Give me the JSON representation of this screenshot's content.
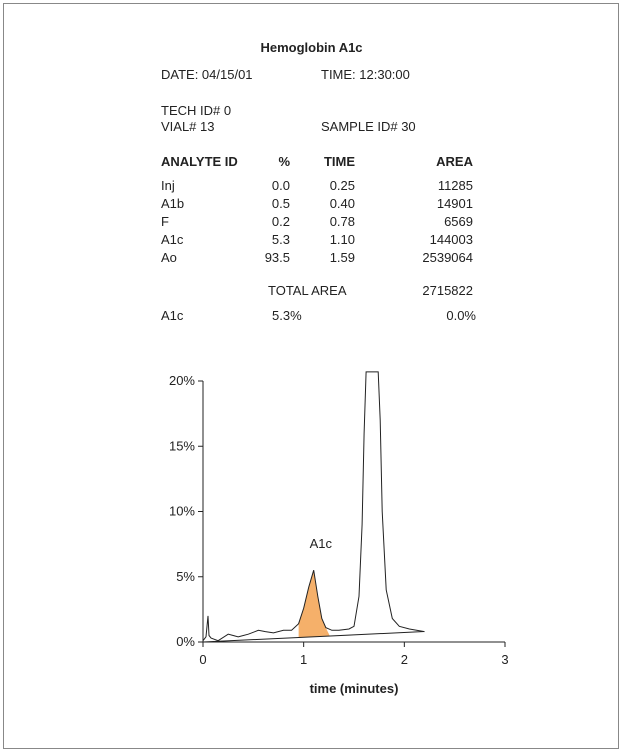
{
  "report": {
    "title": "Hemoglobin A1c",
    "date": "DATE: 04/15/01",
    "time": "TIME: 12:30:00",
    "tech_id": "TECH ID#  0",
    "vial": "VIAL#  13",
    "sample_id": "SAMPLE ID#  30"
  },
  "table": {
    "headers": [
      "ANALYTE ID",
      "%",
      "TIME",
      "AREA"
    ],
    "rows": [
      [
        "Inj",
        "0.0",
        "0.25",
        "11285"
      ],
      [
        "A1b",
        "0.5",
        "0.40",
        "14901"
      ],
      [
        "F",
        "0.2",
        "0.78",
        "6569"
      ],
      [
        "A1c",
        "5.3",
        "1.10",
        "144003"
      ],
      [
        "Ao",
        "93.5",
        "1.59",
        "2539064"
      ]
    ],
    "total_label": "TOTAL AREA",
    "total_value": "2715822",
    "summary_label": "A1c",
    "summary_percent": "5.3%",
    "summary_value": "0.0%"
  },
  "chart_data": {
    "type": "line",
    "xlabel": "time (minutes)",
    "ylabel": "",
    "xlim": [
      0,
      3
    ],
    "ylim": [
      0,
      20
    ],
    "x_ticks": [
      "0",
      "1",
      "2",
      "3"
    ],
    "y_ticks": [
      "0%",
      "5%",
      "10%",
      "15%",
      "20%"
    ],
    "annotation": "A1c",
    "highlight_color": "#f5b06a",
    "series": [
      {
        "x": [
          0,
          0.03,
          0.05,
          0.06,
          0.08,
          0.15,
          0.25,
          0.35,
          0.45,
          0.55,
          0.62,
          0.7,
          0.8,
          0.88,
          0.95,
          1.0,
          1.05,
          1.1,
          1.14,
          1.18,
          1.22,
          1.28,
          1.35,
          1.45,
          1.5,
          1.55,
          1.58,
          1.6,
          1.62,
          1.65,
          1.7,
          1.74,
          1.76,
          1.78,
          1.82,
          1.88,
          1.95,
          2.05,
          2.2
        ],
        "y": [
          0.1,
          0.4,
          2.0,
          0.5,
          0.3,
          0.1,
          0.6,
          0.4,
          0.6,
          0.9,
          0.8,
          0.7,
          0.9,
          0.9,
          1.4,
          2.6,
          4.2,
          5.5,
          3.5,
          1.8,
          1.1,
          0.9,
          0.9,
          1.0,
          1.2,
          3.5,
          9.0,
          16.0,
          20.7,
          20.7,
          20.7,
          20.7,
          17.0,
          10.0,
          4.0,
          1.8,
          1.2,
          1.0,
          0.8
        ]
      }
    ],
    "baseline": {
      "x": [
        0,
        2.2
      ],
      "y": [
        0.0,
        0.8
      ]
    }
  }
}
